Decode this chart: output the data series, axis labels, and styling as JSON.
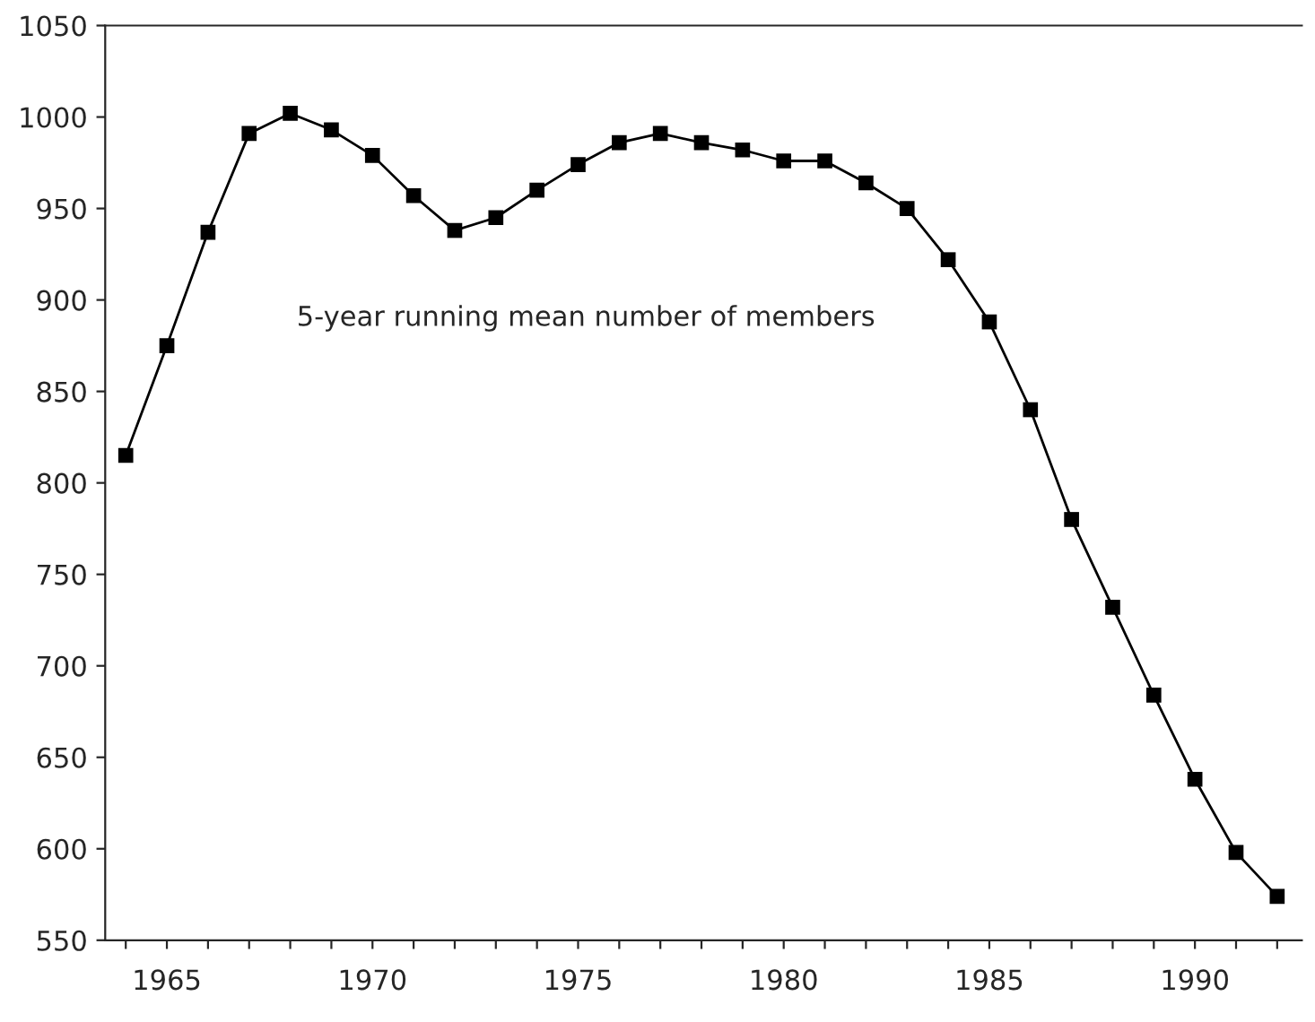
{
  "chart_data": {
    "type": "line",
    "x": [
      1964,
      1965,
      1966,
      1967,
      1968,
      1969,
      1970,
      1971,
      1972,
      1973,
      1974,
      1975,
      1976,
      1977,
      1978,
      1979,
      1980,
      1981,
      1982,
      1983,
      1984,
      1985,
      1986,
      1987,
      1988,
      1989,
      1990,
      1991,
      1992
    ],
    "series": [
      {
        "color": "#000000",
        "values": [
          815,
          875,
          937,
          991,
          1002,
          993,
          979,
          957,
          938,
          945,
          960,
          974,
          986,
          991,
          986,
          982,
          976,
          976,
          964,
          950,
          922,
          888,
          840,
          780,
          732,
          684,
          638,
          598,
          574
        ]
      }
    ],
    "annotations": [
      "5-year running mean number of members"
    ],
    "xlim": [
      1963.5,
      1992.6
    ],
    "ylim": [
      550,
      1050
    ],
    "xticks": [
      {
        "value": 1964,
        "label": null
      },
      1965,
      {
        "value": 1966,
        "label": null
      },
      {
        "value": 1967,
        "label": null
      },
      {
        "value": 1968,
        "label": null
      },
      {
        "value": 1969,
        "label": null
      },
      1970,
      {
        "value": 1971,
        "label": null
      },
      {
        "value": 1972,
        "label": null
      },
      {
        "value": 1973,
        "label": null
      },
      {
        "value": 1974,
        "label": null
      },
      1975,
      {
        "value": 1976,
        "label": null
      },
      {
        "value": 1977,
        "label": null
      },
      {
        "value": 1978,
        "label": null
      },
      {
        "value": 1979,
        "label": null
      },
      1980,
      {
        "value": 1981,
        "label": null
      },
      {
        "value": 1982,
        "label": null
      },
      {
        "value": 1983,
        "label": null
      },
      {
        "value": 1984,
        "label": null
      },
      1985,
      {
        "value": 1986,
        "label": null
      },
      {
        "value": 1987,
        "label": null
      },
      {
        "value": 1988,
        "label": null
      },
      {
        "value": 1989,
        "label": null
      },
      1990,
      {
        "value": 1991,
        "label": null
      },
      {
        "value": 1992,
        "label": null
      }
    ],
    "yticks": [
      550,
      600,
      650,
      700,
      750,
      800,
      850,
      900,
      950,
      1000,
      1050
    ],
    "grid": false,
    "legend": false,
    "marker": "square",
    "line_style": "solid"
  }
}
